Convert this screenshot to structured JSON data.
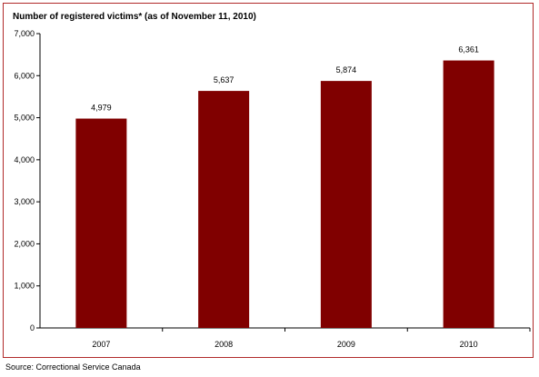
{
  "chart_data": {
    "type": "bar",
    "title": "Number of registered victims* (as of November 11, 2010)",
    "categories": [
      "2007",
      "2008",
      "2009",
      "2010"
    ],
    "values": [
      4979,
      5637,
      5874,
      6361
    ],
    "data_labels": [
      "4,979",
      "5,637",
      "5,874",
      "6,361"
    ],
    "ylim": [
      0,
      7000
    ],
    "yticks": [
      0,
      1000,
      2000,
      3000,
      4000,
      5000,
      6000,
      7000
    ],
    "ytick_labels": [
      "0",
      "1,000",
      "2,000",
      "3,000",
      "4,000",
      "5,000",
      "6,000",
      "7,000"
    ],
    "grid": false,
    "legend": "none",
    "bar_color": "#800000",
    "frame_color": "#b02a2a"
  },
  "source": "Source:  Correctional Service Canada"
}
